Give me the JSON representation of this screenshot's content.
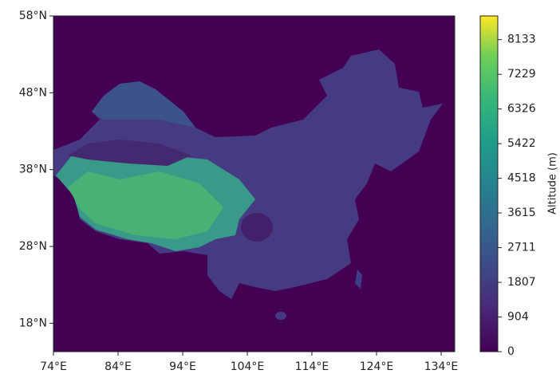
{
  "chart_data": {
    "type": "map",
    "xlim": [
      74,
      136.1
    ],
    "ylim": [
      14.3,
      58
    ],
    "xticks": [
      {
        "value": 74,
        "label": "74°E"
      },
      {
        "value": 84,
        "label": "84°E"
      },
      {
        "value": 94,
        "label": "94°E"
      },
      {
        "value": 104,
        "label": "104°E"
      },
      {
        "value": 114,
        "label": "114°E"
      },
      {
        "value": 124,
        "label": "124°E"
      },
      {
        "value": 134,
        "label": "134°E"
      }
    ],
    "yticks": [
      {
        "value": 18,
        "label": "18°N"
      },
      {
        "value": 28,
        "label": "28°N"
      },
      {
        "value": 38,
        "label": "38°N"
      },
      {
        "value": 48,
        "label": "48°N"
      },
      {
        "value": 58,
        "label": "58°N"
      }
    ],
    "colorbar": {
      "label": "Altitude (m)",
      "lim": [
        0,
        8750
      ],
      "ticks": [
        0,
        904,
        1807,
        2711,
        3615,
        4518,
        5422,
        6326,
        7229,
        8133
      ]
    }
  }
}
